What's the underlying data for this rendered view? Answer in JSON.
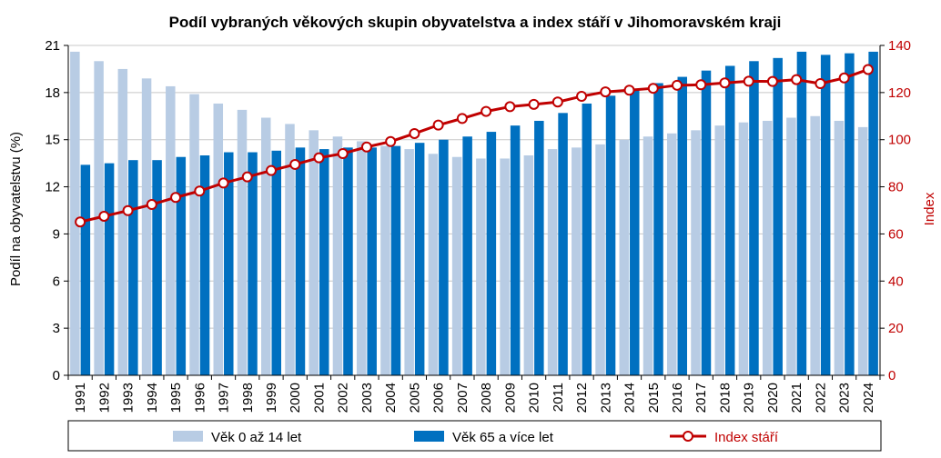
{
  "chart_data": {
    "type": "bar",
    "title": "Podíl vybraných věkových skupin obyvatelstva a index stáří v Jihomoravském kraji",
    "ylabel": "Podíl na obyvatelstvu  (%)",
    "y2label": "Index",
    "ylim": [
      0,
      21
    ],
    "y_ticks": [
      0,
      3,
      6,
      9,
      12,
      15,
      18,
      21
    ],
    "y2lim": [
      0,
      140
    ],
    "y2_ticks": [
      0,
      20,
      40,
      60,
      80,
      100,
      120,
      140
    ],
    "grid": true,
    "legend_position": "bottom",
    "categories": [
      "1991",
      "1992",
      "1993",
      "1994",
      "1995",
      "1996",
      "1997",
      "1998",
      "1999",
      "2000",
      "2001",
      "2002",
      "2003",
      "2004",
      "2005",
      "2006",
      "2007",
      "2008",
      "2009",
      "2010",
      "2011",
      "2012",
      "2013",
      "2014",
      "2015",
      "2016",
      "2017",
      "2018",
      "2019",
      "2020",
      "2021",
      "2022",
      "2023",
      "2024"
    ],
    "series": [
      {
        "name": "Věk 0 až 14 let",
        "kind": "bar",
        "axis": "left",
        "color": "#b8cce4",
        "values": [
          20.6,
          20.0,
          19.5,
          18.9,
          18.4,
          17.9,
          17.3,
          16.9,
          16.4,
          16.0,
          15.6,
          15.2,
          14.9,
          14.6,
          14.4,
          14.1,
          13.9,
          13.8,
          13.8,
          14.0,
          14.4,
          14.5,
          14.7,
          15.0,
          15.2,
          15.4,
          15.6,
          15.9,
          16.1,
          16.2,
          16.4,
          16.5,
          16.2,
          15.8
        ]
      },
      {
        "name": "Věk 65 a více let",
        "kind": "bar",
        "axis": "left",
        "color": "#0070c0",
        "values": [
          13.4,
          13.5,
          13.7,
          13.7,
          13.9,
          14.0,
          14.2,
          14.2,
          14.3,
          14.5,
          14.4,
          14.5,
          14.5,
          14.6,
          14.8,
          15.0,
          15.2,
          15.5,
          15.9,
          16.2,
          16.7,
          17.3,
          17.8,
          18.2,
          18.6,
          19.0,
          19.4,
          19.7,
          20.0,
          20.2,
          20.6,
          20.4,
          20.5,
          20.6
        ]
      },
      {
        "name": "Index stáří",
        "kind": "line",
        "axis": "right",
        "color": "#c00000",
        "values": [
          65.1,
          67.5,
          69.9,
          72.5,
          75.5,
          78.2,
          81.6,
          84.2,
          86.9,
          89.5,
          92.3,
          94.1,
          96.9,
          99.2,
          102.6,
          106.2,
          109.0,
          112.0,
          114.0,
          115.0,
          116.0,
          118.4,
          120.3,
          121.0,
          121.8,
          123.1,
          123.3,
          124.1,
          124.8,
          124.7,
          125.5,
          123.8,
          126.2,
          129.8
        ]
      }
    ]
  }
}
